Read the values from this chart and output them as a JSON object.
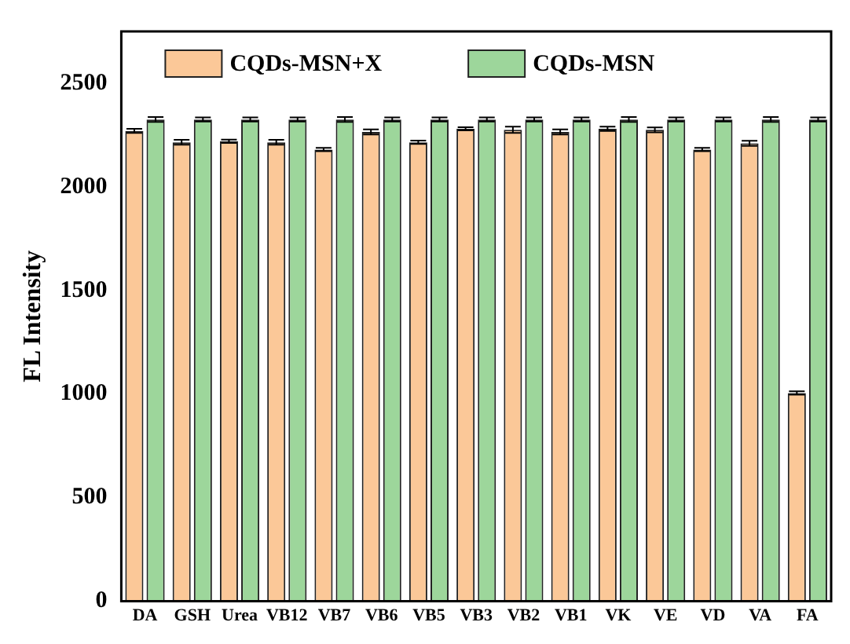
{
  "chart_data": {
    "type": "bar",
    "ylabel": "FL Intensity",
    "categories": [
      "DA",
      "GSH",
      "Urea",
      "VB12",
      "VB7",
      "VB6",
      "VB5",
      "VB3",
      "VB2",
      "VB1",
      "VK",
      "VE",
      "VD",
      "VA",
      "FA"
    ],
    "series": [
      {
        "name": "CQDs-MSN+X",
        "color": "#fbc898",
        "values": [
          2270,
          2215,
          2220,
          2215,
          2180,
          2265,
          2215,
          2280,
          2275,
          2265,
          2280,
          2275,
          2180,
          2210,
          1005
        ],
        "errors": [
          10,
          12,
          8,
          12,
          8,
          12,
          8,
          8,
          15,
          12,
          10,
          12,
          8,
          12,
          8
        ]
      },
      {
        "name": "CQDs-MSN",
        "color": "#9dd69b",
        "values": [
          2325,
          2325,
          2325,
          2325,
          2325,
          2325,
          2325,
          2325,
          2325,
          2325,
          2325,
          2325,
          2325,
          2325,
          2325
        ],
        "errors": [
          12,
          10,
          10,
          10,
          12,
          10,
          10,
          10,
          10,
          10,
          12,
          10,
          10,
          12,
          10
        ]
      }
    ],
    "ylim": [
      0,
      2750
    ],
    "yticks": [
      0,
      500,
      1000,
      1500,
      2000,
      2500
    ],
    "grid": false,
    "legend": "top left"
  }
}
